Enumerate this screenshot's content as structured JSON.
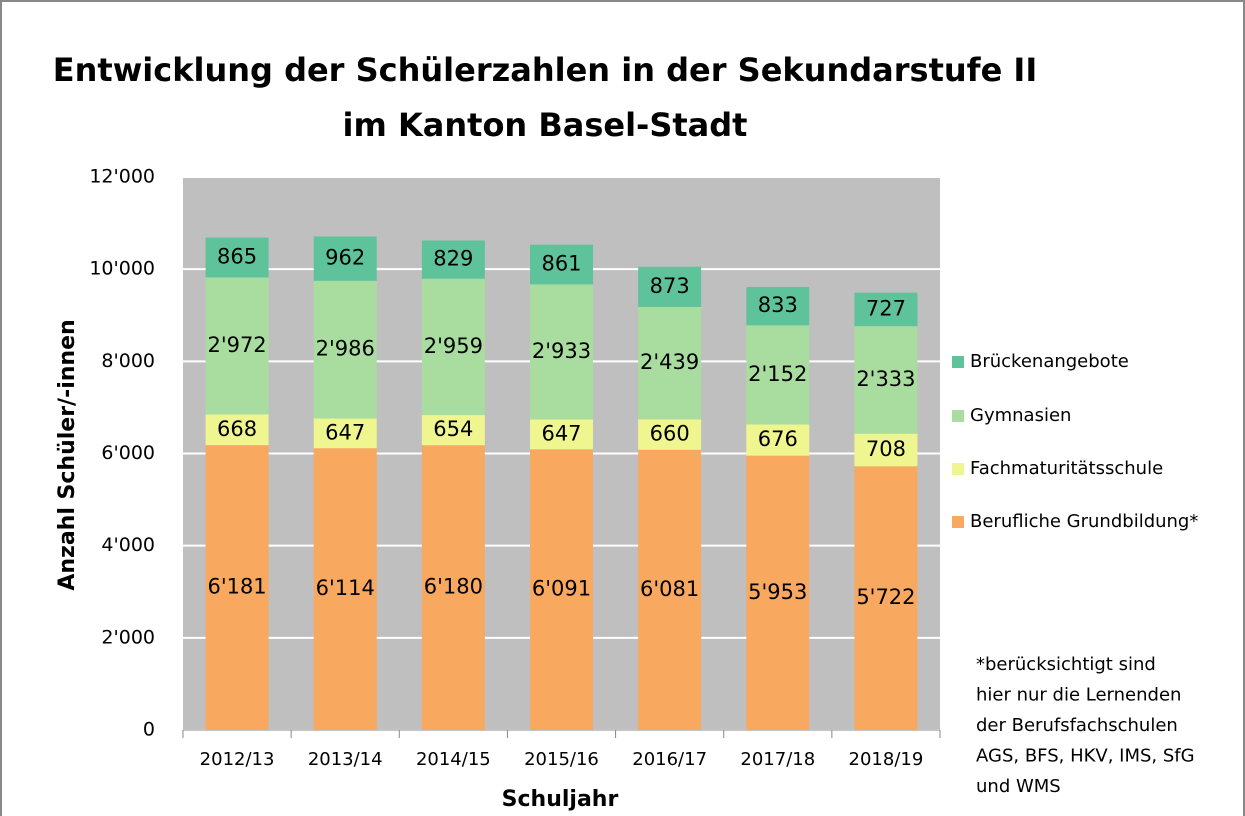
{
  "chart_data": {
    "type": "stacked_bar",
    "title": [
      "Entwicklung der Schülerzahlen in der Sekundarstufe II",
      "im Kanton Basel-Stadt"
    ],
    "xlabel": "Schuljahr",
    "ylabel": "Anzahl Schüler/-innen",
    "categories": [
      "2012/13",
      "2013/14",
      "2014/15",
      "2015/16",
      "2016/17",
      "2017/18",
      "2018/19"
    ],
    "series": [
      {
        "name": "Berufliche Grundbildung*",
        "color": "#f9a85f",
        "values": [
          6181,
          6114,
          6180,
          6091,
          6081,
          5953,
          5722
        ],
        "value_labels": [
          "6'181",
          "6'114",
          "6'180",
          "6'091",
          "6'081",
          "5'953",
          "5'722"
        ]
      },
      {
        "name": "Fachmaturitätsschule",
        "color": "#eff58f",
        "values": [
          668,
          647,
          654,
          647,
          660,
          676,
          708
        ]
      },
      {
        "name": "Gymnasien",
        "color": "#a9dc9f",
        "values": [
          2972,
          2986,
          2959,
          2933,
          2439,
          2152,
          2333
        ],
        "value_labels": [
          "2'972",
          "2'986",
          "2'959",
          "2'933",
          "2'439",
          "2'152",
          "2'333"
        ]
      },
      {
        "name": "Brückenangebote",
        "color": "#5ec39b",
        "values": [
          865,
          962,
          829,
          861,
          873,
          833,
          727
        ]
      }
    ],
    "ylim": [
      0,
      12000
    ],
    "yticks": [
      0,
      {
        "value": 2000,
        "label": "2'000"
      },
      {
        "value": 4000,
        "label": "4'000"
      },
      {
        "value": 6000,
        "label": "6'000"
      },
      {
        "value": 8000,
        "label": "8'000"
      },
      {
        "value": 10000,
        "label": "10'000"
      },
      {
        "value": 12000,
        "label": "12'000"
      }
    ],
    "grid": true,
    "legend": "right",
    "note": [
      "*berücksichtigt sind",
      "hier nur die Lernenden",
      "der Berufsfachschulen",
      "AGS, BFS, HKV, IMS, SfG",
      "und WMS"
    ]
  }
}
